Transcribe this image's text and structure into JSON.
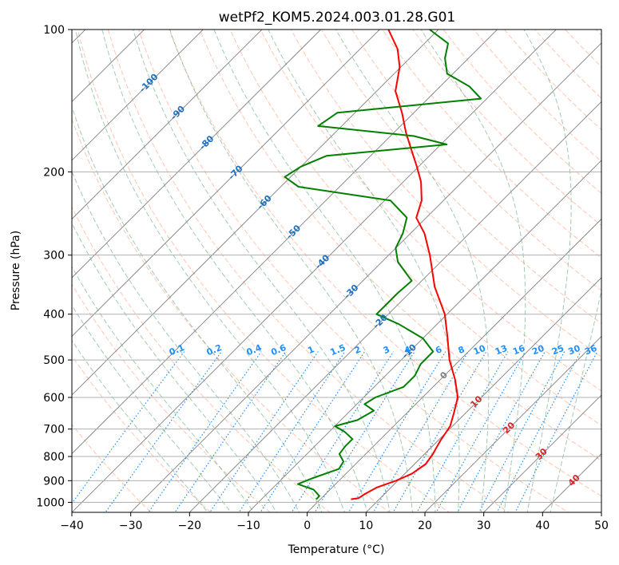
{
  "chart_data": {
    "type": "skew-t",
    "title": "wetPf2_KOM5.2024.003.01.28.G01",
    "xlabel": "Temperature (°C)",
    "ylabel": "Pressure (hPa)",
    "xlim": [
      -40,
      50
    ],
    "ylim": [
      1050,
      100
    ],
    "y_scale": "log",
    "x_ticks": [
      -40,
      -30,
      -20,
      -10,
      0,
      10,
      20,
      30,
      40,
      50
    ],
    "x_tick_labels": [
      "−40",
      "−30",
      "−20",
      "−10",
      "0",
      "10",
      "20",
      "30",
      "40",
      "50"
    ],
    "y_ticks": [
      100,
      200,
      300,
      400,
      500,
      600,
      700,
      800,
      900,
      1000
    ],
    "y_tick_labels": [
      "100",
      "200",
      "300",
      "400",
      "500",
      "600",
      "700",
      "800",
      "900",
      "1000"
    ],
    "grid": true,
    "colors": {
      "temperature": "#ff0000",
      "dewpoint": "#008000",
      "isotherm": "#808080",
      "dry_adiabat": "#ff7f50",
      "moist_adiabat": "#2e8b57",
      "mixing_ratio": "#1e90ff",
      "isotherm_label_cold": "#1f6fbf",
      "isotherm_label_warm": "#d62728",
      "mixing_ratio_label": "#1e90ff"
    },
    "temperature_profile": [
      {
        "p": 985,
        "t": 5.2
      },
      {
        "p": 980,
        "t": 6.3
      },
      {
        "p": 960,
        "t": 6.7
      },
      {
        "p": 930,
        "t": 7.6
      },
      {
        "p": 900,
        "t": 9.7
      },
      {
        "p": 870,
        "t": 11.2
      },
      {
        "p": 830,
        "t": 11.9
      },
      {
        "p": 790,
        "t": 11.4
      },
      {
        "p": 740,
        "t": 10.4
      },
      {
        "p": 690,
        "t": 9.6
      },
      {
        "p": 650,
        "t": 8.1
      },
      {
        "p": 600,
        "t": 6.0
      },
      {
        "p": 550,
        "t": 2.5
      },
      {
        "p": 500,
        "t": -1.8
      },
      {
        "p": 450,
        "t": -5.8
      },
      {
        "p": 400,
        "t": -10.4
      },
      {
        "p": 350,
        "t": -16.8
      },
      {
        "p": 300,
        "t": -23.0
      },
      {
        "p": 270,
        "t": -27.6
      },
      {
        "p": 250,
        "t": -31.7
      },
      {
        "p": 230,
        "t": -33.7
      },
      {
        "p": 210,
        "t": -37.0
      },
      {
        "p": 195,
        "t": -40.3
      },
      {
        "p": 180,
        "t": -44.0
      },
      {
        "p": 165,
        "t": -48.0
      },
      {
        "p": 150,
        "t": -52.0
      },
      {
        "p": 135,
        "t": -56.8
      },
      {
        "p": 120,
        "t": -60.2
      },
      {
        "p": 110,
        "t": -63.6
      },
      {
        "p": 100,
        "t": -68.5
      }
    ],
    "dewpoint_profile": [
      {
        "p": 985,
        "t": -0.7
      },
      {
        "p": 970,
        "t": -0.7
      },
      {
        "p": 940,
        "t": -2.8
      },
      {
        "p": 915,
        "t": -6.4
      },
      {
        "p": 890,
        "t": -5.0
      },
      {
        "p": 850,
        "t": -2.0
      },
      {
        "p": 820,
        "t": -2.5
      },
      {
        "p": 790,
        "t": -4.5
      },
      {
        "p": 760,
        "t": -4.8
      },
      {
        "p": 735,
        "t": -4.8
      },
      {
        "p": 710,
        "t": -7.3
      },
      {
        "p": 690,
        "t": -10.0
      },
      {
        "p": 670,
        "t": -7.2
      },
      {
        "p": 640,
        "t": -6.0
      },
      {
        "p": 620,
        "t": -8.7
      },
      {
        "p": 600,
        "t": -8.0
      },
      {
        "p": 570,
        "t": -5.0
      },
      {
        "p": 540,
        "t": -5.0
      },
      {
        "p": 510,
        "t": -6.0
      },
      {
        "p": 480,
        "t": -6.0
      },
      {
        "p": 450,
        "t": -10.0
      },
      {
        "p": 420,
        "t": -16.5
      },
      {
        "p": 400,
        "t": -22.0
      },
      {
        "p": 380,
        "t": -22.0
      },
      {
        "p": 360,
        "t": -22.0
      },
      {
        "p": 340,
        "t": -21.7
      },
      {
        "p": 310,
        "t": -27.3
      },
      {
        "p": 290,
        "t": -30.0
      },
      {
        "p": 270,
        "t": -31.3
      },
      {
        "p": 250,
        "t": -33.3
      },
      {
        "p": 230,
        "t": -39.0
      },
      {
        "p": 215,
        "t": -57.0
      },
      {
        "p": 205,
        "t": -61.0
      },
      {
        "p": 195,
        "t": -60.0
      },
      {
        "p": 185,
        "t": -57.5
      },
      {
        "p": 175,
        "t": -39.0
      },
      {
        "p": 168,
        "t": -46.0
      },
      {
        "p": 160,
        "t": -64.0
      },
      {
        "p": 150,
        "t": -63.0
      },
      {
        "p": 140,
        "t": -41.0
      },
      {
        "p": 132,
        "t": -45.0
      },
      {
        "p": 124,
        "t": -51.0
      },
      {
        "p": 115,
        "t": -54.0
      },
      {
        "p": 107,
        "t": -56.0
      },
      {
        "p": 100,
        "t": -61.5
      }
    ],
    "isotherm_labels": [
      {
        "t": -100,
        "text": "-100"
      },
      {
        "t": -90,
        "text": "-90"
      },
      {
        "t": -80,
        "text": "-80"
      },
      {
        "t": -70,
        "text": "-70"
      },
      {
        "t": -60,
        "text": "-60"
      },
      {
        "t": -50,
        "text": "-50"
      },
      {
        "t": -40,
        "text": "-40"
      },
      {
        "t": -30,
        "text": "-30"
      },
      {
        "t": -20,
        "text": "-20"
      },
      {
        "t": -10,
        "text": "-10"
      },
      {
        "t": 0,
        "text": "0"
      },
      {
        "t": 10,
        "text": "10"
      },
      {
        "t": 20,
        "text": "20"
      },
      {
        "t": 30,
        "text": "30"
      },
      {
        "t": 40,
        "text": "40"
      }
    ],
    "mixing_ratios": [
      {
        "w": 0.1,
        "text": "0.1"
      },
      {
        "w": 0.2,
        "text": "0.2"
      },
      {
        "w": 0.4,
        "text": "0.4"
      },
      {
        "w": 0.6,
        "text": "0.6"
      },
      {
        "w": 1,
        "text": "1"
      },
      {
        "w": 1.5,
        "text": "1.5"
      },
      {
        "w": 2,
        "text": "2"
      },
      {
        "w": 3,
        "text": "3"
      },
      {
        "w": 4,
        "text": "4"
      },
      {
        "w": 6,
        "text": "6"
      },
      {
        "w": 8,
        "text": "8"
      },
      {
        "w": 10,
        "text": "10"
      },
      {
        "w": 13,
        "text": "13"
      },
      {
        "w": 16,
        "text": "16"
      },
      {
        "w": 20,
        "text": "20"
      },
      {
        "w": 25,
        "text": "25"
      },
      {
        "w": 30,
        "text": "30"
      },
      {
        "w": 36,
        "text": "36"
      }
    ]
  }
}
